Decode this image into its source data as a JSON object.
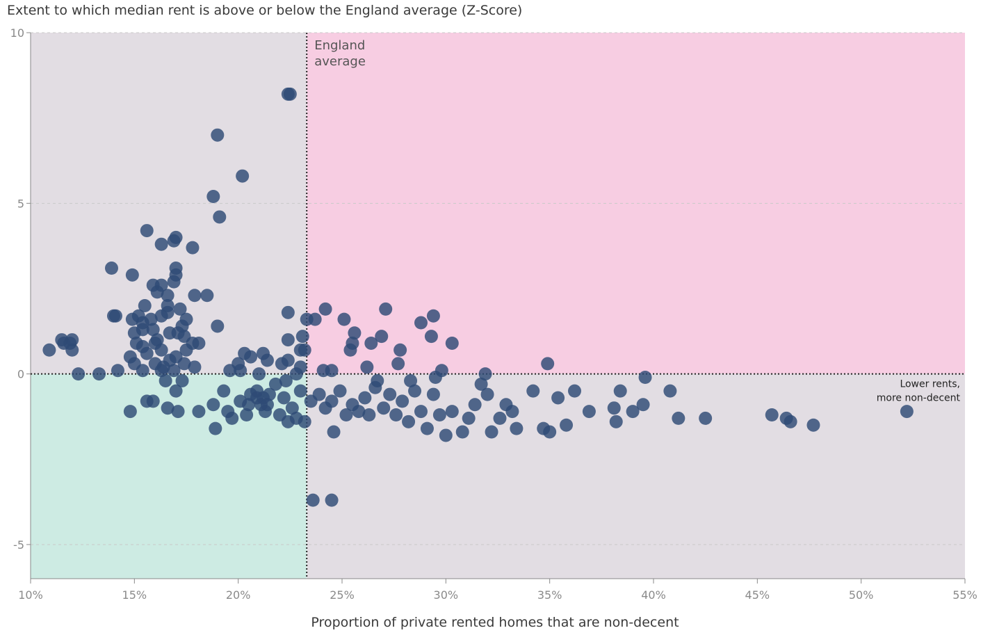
{
  "chart_data": {
    "type": "scatter",
    "ylabel": "Extent to which median rent is above or below the England average (Z-Score)",
    "xlabel": "Proportion of private rented homes that are non-decent",
    "xlim": [
      10,
      55
    ],
    "ylim": [
      -6,
      10
    ],
    "x_ticks": [
      10,
      15,
      20,
      25,
      30,
      35,
      40,
      45,
      50,
      55
    ],
    "x_tick_labels": [
      "10%",
      "15%",
      "20%",
      "25%",
      "30%",
      "35%",
      "40%",
      "45%",
      "50%",
      "55%"
    ],
    "y_ticks": [
      10,
      5,
      0,
      -5
    ],
    "y_tick_labels": [
      "10",
      "5",
      "0",
      "-5"
    ],
    "grid": "horizontal dashed",
    "reference_x": 23.3,
    "reference_x_label": [
      "England",
      "average"
    ],
    "reference_y": 0,
    "quadrant_annotation": [
      "Lower rents,",
      "more non-decent"
    ],
    "colors": {
      "points": "#2e4a75",
      "upper_right": "#f7cde2",
      "lower_left": "#cdebe3",
      "other_quadrants": "#e2dde3",
      "grid": "#c9c9c9"
    },
    "points": [
      [
        22.4,
        8.2
      ],
      [
        22.5,
        8.2
      ],
      [
        19.0,
        7.0
      ],
      [
        20.2,
        5.8
      ],
      [
        18.8,
        5.2
      ],
      [
        19.1,
        4.6
      ],
      [
        15.6,
        4.2
      ],
      [
        16.3,
        3.8
      ],
      [
        17.0,
        4.0
      ],
      [
        16.9,
        3.9
      ],
      [
        17.8,
        3.7
      ],
      [
        13.9,
        3.1
      ],
      [
        14.9,
        2.9
      ],
      [
        17.0,
        3.1
      ],
      [
        17.0,
        2.9
      ],
      [
        15.9,
        2.6
      ],
      [
        16.3,
        2.6
      ],
      [
        16.9,
        2.7
      ],
      [
        16.1,
        2.4
      ],
      [
        16.6,
        2.3
      ],
      [
        17.9,
        2.3
      ],
      [
        18.5,
        2.3
      ],
      [
        15.5,
        2.0
      ],
      [
        16.6,
        2.0
      ],
      [
        17.2,
        1.9
      ],
      [
        14.0,
        1.7
      ],
      [
        14.1,
        1.7
      ],
      [
        14.9,
        1.6
      ],
      [
        15.2,
        1.7
      ],
      [
        15.4,
        1.5
      ],
      [
        15.8,
        1.6
      ],
      [
        16.3,
        1.7
      ],
      [
        16.6,
        1.8
      ],
      [
        17.5,
        1.6
      ],
      [
        17.3,
        1.4
      ],
      [
        19.0,
        1.4
      ],
      [
        15.0,
        1.2
      ],
      [
        15.4,
        1.3
      ],
      [
        15.9,
        1.3
      ],
      [
        16.1,
        1.0
      ],
      [
        16.7,
        1.2
      ],
      [
        17.1,
        1.2
      ],
      [
        17.4,
        1.1
      ],
      [
        15.1,
        0.9
      ],
      [
        15.4,
        0.8
      ],
      [
        16.0,
        0.9
      ],
      [
        16.3,
        0.7
      ],
      [
        17.8,
        0.9
      ],
      [
        18.1,
        0.9
      ],
      [
        17.5,
        0.7
      ],
      [
        10.9,
        0.7
      ],
      [
        11.5,
        1.0
      ],
      [
        11.6,
        0.9
      ],
      [
        11.9,
        0.9
      ],
      [
        12.0,
        1.0
      ],
      [
        12.0,
        0.7
      ],
      [
        14.8,
        0.5
      ],
      [
        15.0,
        0.3
      ],
      [
        15.6,
        0.6
      ],
      [
        16.0,
        0.3
      ],
      [
        16.4,
        0.2
      ],
      [
        16.7,
        0.4
      ],
      [
        17.0,
        0.5
      ],
      [
        17.4,
        0.3
      ],
      [
        17.9,
        0.2
      ],
      [
        15.4,
        0.1
      ],
      [
        16.3,
        0.1
      ],
      [
        16.9,
        0.1
      ],
      [
        20.0,
        0.3
      ],
      [
        20.3,
        0.6
      ],
      [
        20.6,
        0.5
      ],
      [
        21.2,
        0.6
      ],
      [
        21.4,
        0.4
      ],
      [
        22.1,
        0.3
      ],
      [
        22.4,
        0.4
      ],
      [
        23.0,
        0.2
      ],
      [
        20.1,
        0.1
      ],
      [
        22.4,
        1.8
      ],
      [
        22.4,
        1.0
      ],
      [
        23.0,
        0.7
      ],
      [
        23.3,
        1.6
      ],
      [
        23.1,
        1.1
      ],
      [
        23.2,
        0.7
      ],
      [
        12.3,
        0.0
      ],
      [
        13.3,
        0.0
      ],
      [
        14.2,
        0.1
      ],
      [
        19.6,
        0.1
      ],
      [
        21.0,
        0.0
      ],
      [
        22.8,
        0.0
      ],
      [
        16.5,
        -0.2
      ],
      [
        17.3,
        -0.2
      ],
      [
        17.0,
        -0.5
      ],
      [
        15.6,
        -0.8
      ],
      [
        15.9,
        -0.8
      ],
      [
        14.8,
        -1.1
      ],
      [
        16.6,
        -1.0
      ],
      [
        17.1,
        -1.1
      ],
      [
        18.1,
        -1.1
      ],
      [
        18.8,
        -0.9
      ],
      [
        18.9,
        -1.6
      ],
      [
        19.3,
        -0.5
      ],
      [
        19.5,
        -1.1
      ],
      [
        19.7,
        -1.3
      ],
      [
        20.1,
        -0.8
      ],
      [
        20.4,
        -1.2
      ],
      [
        20.6,
        -0.6
      ],
      [
        20.9,
        -0.5
      ],
      [
        21.1,
        -0.9
      ],
      [
        21.3,
        -1.1
      ],
      [
        21.5,
        -0.6
      ],
      [
        21.8,
        -0.3
      ],
      [
        22.0,
        -1.2
      ],
      [
        22.2,
        -0.7
      ],
      [
        22.4,
        -1.4
      ],
      [
        22.6,
        -1.0
      ],
      [
        22.8,
        -1.3
      ],
      [
        23.0,
        -0.5
      ],
      [
        23.2,
        -1.4
      ],
      [
        20.9,
        -0.7
      ],
      [
        21.2,
        -0.7
      ],
      [
        21.4,
        -0.9
      ],
      [
        20.5,
        -0.9
      ],
      [
        22.3,
        -0.2
      ],
      [
        23.7,
        1.6
      ],
      [
        24.2,
        1.9
      ],
      [
        25.1,
        1.6
      ],
      [
        25.6,
        1.2
      ],
      [
        25.5,
        0.9
      ],
      [
        25.4,
        0.7
      ],
      [
        26.4,
        0.9
      ],
      [
        26.9,
        1.1
      ],
      [
        27.1,
        1.9
      ],
      [
        27.8,
        0.7
      ],
      [
        27.7,
        0.3
      ],
      [
        28.8,
        1.5
      ],
      [
        29.3,
        1.1
      ],
      [
        29.4,
        1.7
      ],
      [
        30.3,
        0.9
      ],
      [
        29.8,
        0.1
      ],
      [
        24.1,
        0.1
      ],
      [
        24.5,
        0.1
      ],
      [
        26.2,
        0.2
      ],
      [
        34.9,
        0.3
      ],
      [
        23.5,
        -0.8
      ],
      [
        23.9,
        -0.6
      ],
      [
        24.2,
        -1.0
      ],
      [
        24.5,
        -0.8
      ],
      [
        24.9,
        -0.5
      ],
      [
        25.2,
        -1.2
      ],
      [
        25.5,
        -0.9
      ],
      [
        25.8,
        -1.1
      ],
      [
        26.1,
        -0.7
      ],
      [
        26.3,
        -1.2
      ],
      [
        26.6,
        -0.4
      ],
      [
        27.0,
        -1.0
      ],
      [
        27.3,
        -0.6
      ],
      [
        27.6,
        -1.2
      ],
      [
        27.9,
        -0.8
      ],
      [
        28.2,
        -1.4
      ],
      [
        28.5,
        -0.5
      ],
      [
        28.8,
        -1.1
      ],
      [
        29.1,
        -1.6
      ],
      [
        29.4,
        -0.6
      ],
      [
        29.7,
        -1.2
      ],
      [
        30.0,
        -1.8
      ],
      [
        30.3,
        -1.1
      ],
      [
        30.8,
        -1.7
      ],
      [
        31.1,
        -1.3
      ],
      [
        31.4,
        -0.9
      ],
      [
        31.7,
        -0.3
      ],
      [
        32.0,
        -0.6
      ],
      [
        32.2,
        -1.7
      ],
      [
        32.6,
        -1.3
      ],
      [
        32.9,
        -0.9
      ],
      [
        33.2,
        -1.1
      ],
      [
        33.4,
        -1.6
      ],
      [
        24.6,
        -1.7
      ],
      [
        26.7,
        -0.2
      ],
      [
        28.3,
        -0.2
      ],
      [
        29.5,
        -0.1
      ],
      [
        31.9,
        0.0
      ],
      [
        23.6,
        -3.7
      ],
      [
        24.5,
        -3.7
      ],
      [
        34.2,
        -0.5
      ],
      [
        34.7,
        -1.6
      ],
      [
        35.0,
        -1.7
      ],
      [
        35.4,
        -0.7
      ],
      [
        35.8,
        -1.5
      ],
      [
        36.2,
        -0.5
      ],
      [
        36.9,
        -1.1
      ],
      [
        38.1,
        -1.0
      ],
      [
        38.4,
        -0.5
      ],
      [
        38.2,
        -1.4
      ],
      [
        39.0,
        -1.1
      ],
      [
        39.5,
        -0.9
      ],
      [
        39.6,
        -0.1
      ],
      [
        40.8,
        -0.5
      ],
      [
        41.2,
        -1.3
      ],
      [
        42.5,
        -1.3
      ],
      [
        45.7,
        -1.2
      ],
      [
        46.4,
        -1.3
      ],
      [
        46.6,
        -1.4
      ],
      [
        47.7,
        -1.5
      ],
      [
        52.2,
        -1.1
      ]
    ]
  }
}
